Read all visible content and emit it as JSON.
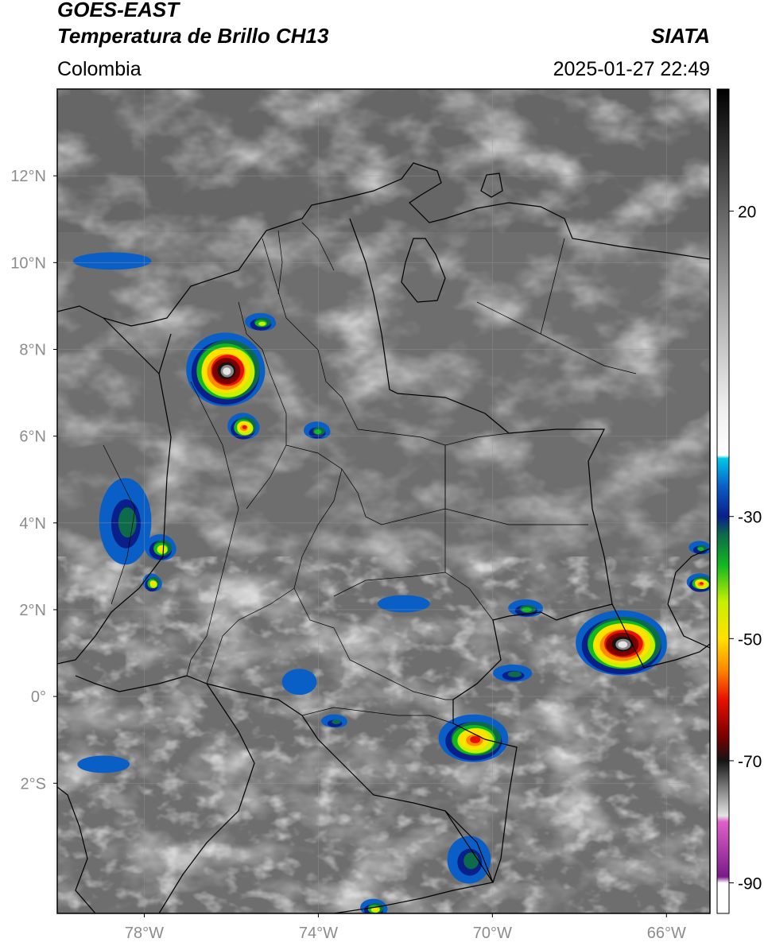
{
  "header": {
    "satellite": "GOES-EAST",
    "product": "Temperatura de Brillo CH13",
    "region": "Colombia",
    "credit": "SIATA",
    "timestamp": "2025-01-27 22:49"
  },
  "map": {
    "lon_range": [
      -80,
      -65
    ],
    "lat_range": [
      -5,
      14
    ],
    "lat_ticks": [
      {
        "value": 12,
        "label": "12°N"
      },
      {
        "value": 10,
        "label": "10°N"
      },
      {
        "value": 8,
        "label": "8°N"
      },
      {
        "value": 6,
        "label": "6°N"
      },
      {
        "value": 4,
        "label": "4°N"
      },
      {
        "value": 2,
        "label": "2°N"
      },
      {
        "value": 0,
        "label": "0°"
      },
      {
        "value": -2,
        "label": "2°S"
      }
    ],
    "lon_ticks": [
      {
        "value": -78,
        "label": "78°W"
      },
      {
        "value": -74,
        "label": "74°W"
      },
      {
        "value": -70,
        "label": "70°W"
      },
      {
        "value": -66,
        "label": "66°W"
      }
    ],
    "grid": true
  },
  "colorbar": {
    "range": [
      -95,
      40
    ],
    "ticks": [
      {
        "value": 20,
        "label": "20"
      },
      {
        "value": -30,
        "label": "-30"
      },
      {
        "value": -50,
        "label": "-50"
      },
      {
        "value": -70,
        "label": "-70"
      },
      {
        "value": -90,
        "label": "-90"
      }
    ],
    "stops": [
      {
        "value": 40,
        "color": "#000000"
      },
      {
        "value": 22,
        "color": "#5a5a5a"
      },
      {
        "value": 5,
        "color": "#a9a9a9"
      },
      {
        "value": -12,
        "color": "#eeeeee"
      },
      {
        "value": -20,
        "color": "#ffffff"
      },
      {
        "value": -20.5,
        "color": "#00c8e8"
      },
      {
        "value": -25,
        "color": "#0a5fc6"
      },
      {
        "value": -30,
        "color": "#0a1f8a"
      },
      {
        "value": -33,
        "color": "#0d6a4a"
      },
      {
        "value": -38,
        "color": "#12b820"
      },
      {
        "value": -44,
        "color": "#c8f000"
      },
      {
        "value": -50,
        "color": "#ffe100"
      },
      {
        "value": -55,
        "color": "#ff8a00"
      },
      {
        "value": -60,
        "color": "#e81000"
      },
      {
        "value": -66,
        "color": "#7a0000"
      },
      {
        "value": -70,
        "color": "#141414"
      },
      {
        "value": -75,
        "color": "#8a8a8a"
      },
      {
        "value": -79,
        "color": "#e4e4e4"
      },
      {
        "value": -80,
        "color": "#e060c8"
      },
      {
        "value": -89,
        "color": "#7a1a8a"
      },
      {
        "value": -90,
        "color": "#ffffff"
      },
      {
        "value": -95,
        "color": "#ffffff"
      }
    ]
  },
  "storm_cells": [
    {
      "lon": -76.1,
      "lat": 7.5,
      "rx": 0.9,
      "ry": 0.85,
      "min_temp": -78
    },
    {
      "lon": -75.7,
      "lat": 6.2,
      "rx": 0.35,
      "ry": 0.3,
      "min_temp": -60
    },
    {
      "lon": -75.3,
      "lat": 8.6,
      "rx": 0.35,
      "ry": 0.2,
      "min_temp": -42
    },
    {
      "lon": -74.0,
      "lat": 6.1,
      "rx": 0.3,
      "ry": 0.2,
      "min_temp": -40
    },
    {
      "lon": -78.4,
      "lat": 4.0,
      "rx": 0.6,
      "ry": 1.0,
      "min_temp": -36
    },
    {
      "lon": -77.6,
      "lat": 3.4,
      "rx": 0.35,
      "ry": 0.3,
      "min_temp": -46
    },
    {
      "lon": -77.8,
      "lat": 2.6,
      "rx": 0.2,
      "ry": 0.2,
      "min_temp": -50
    },
    {
      "lon": -67.0,
      "lat": 1.2,
      "rx": 1.05,
      "ry": 0.75,
      "min_temp": -78
    },
    {
      "lon": -65.2,
      "lat": 2.6,
      "rx": 0.3,
      "ry": 0.2,
      "min_temp": -60
    },
    {
      "lon": -65.2,
      "lat": 3.4,
      "rx": 0.25,
      "ry": 0.15,
      "min_temp": -40
    },
    {
      "lon": -70.4,
      "lat": -1.0,
      "rx": 0.8,
      "ry": 0.55,
      "min_temp": -58
    },
    {
      "lon": -69.5,
      "lat": 0.5,
      "rx": 0.45,
      "ry": 0.2,
      "min_temp": -36
    },
    {
      "lon": -69.2,
      "lat": 2.0,
      "rx": 0.4,
      "ry": 0.2,
      "min_temp": -38
    },
    {
      "lon": -70.5,
      "lat": -3.8,
      "rx": 0.5,
      "ry": 0.55,
      "min_temp": -36
    },
    {
      "lon": -72.7,
      "lat": -4.9,
      "rx": 0.3,
      "ry": 0.2,
      "min_temp": -46
    },
    {
      "lon": -78.7,
      "lat": 10.0,
      "rx": 0.9,
      "ry": 0.2,
      "min_temp": -26
    },
    {
      "lon": -73.6,
      "lat": -0.6,
      "rx": 0.3,
      "ry": 0.15,
      "min_temp": -34
    },
    {
      "lon": -78.9,
      "lat": -1.6,
      "rx": 0.6,
      "ry": 0.2,
      "min_temp": -22
    },
    {
      "lon": -74.4,
      "lat": 0.3,
      "rx": 0.4,
      "ry": 0.3,
      "min_temp": -22
    },
    {
      "lon": -72.0,
      "lat": 2.1,
      "rx": 0.6,
      "ry": 0.2,
      "min_temp": -26
    }
  ]
}
